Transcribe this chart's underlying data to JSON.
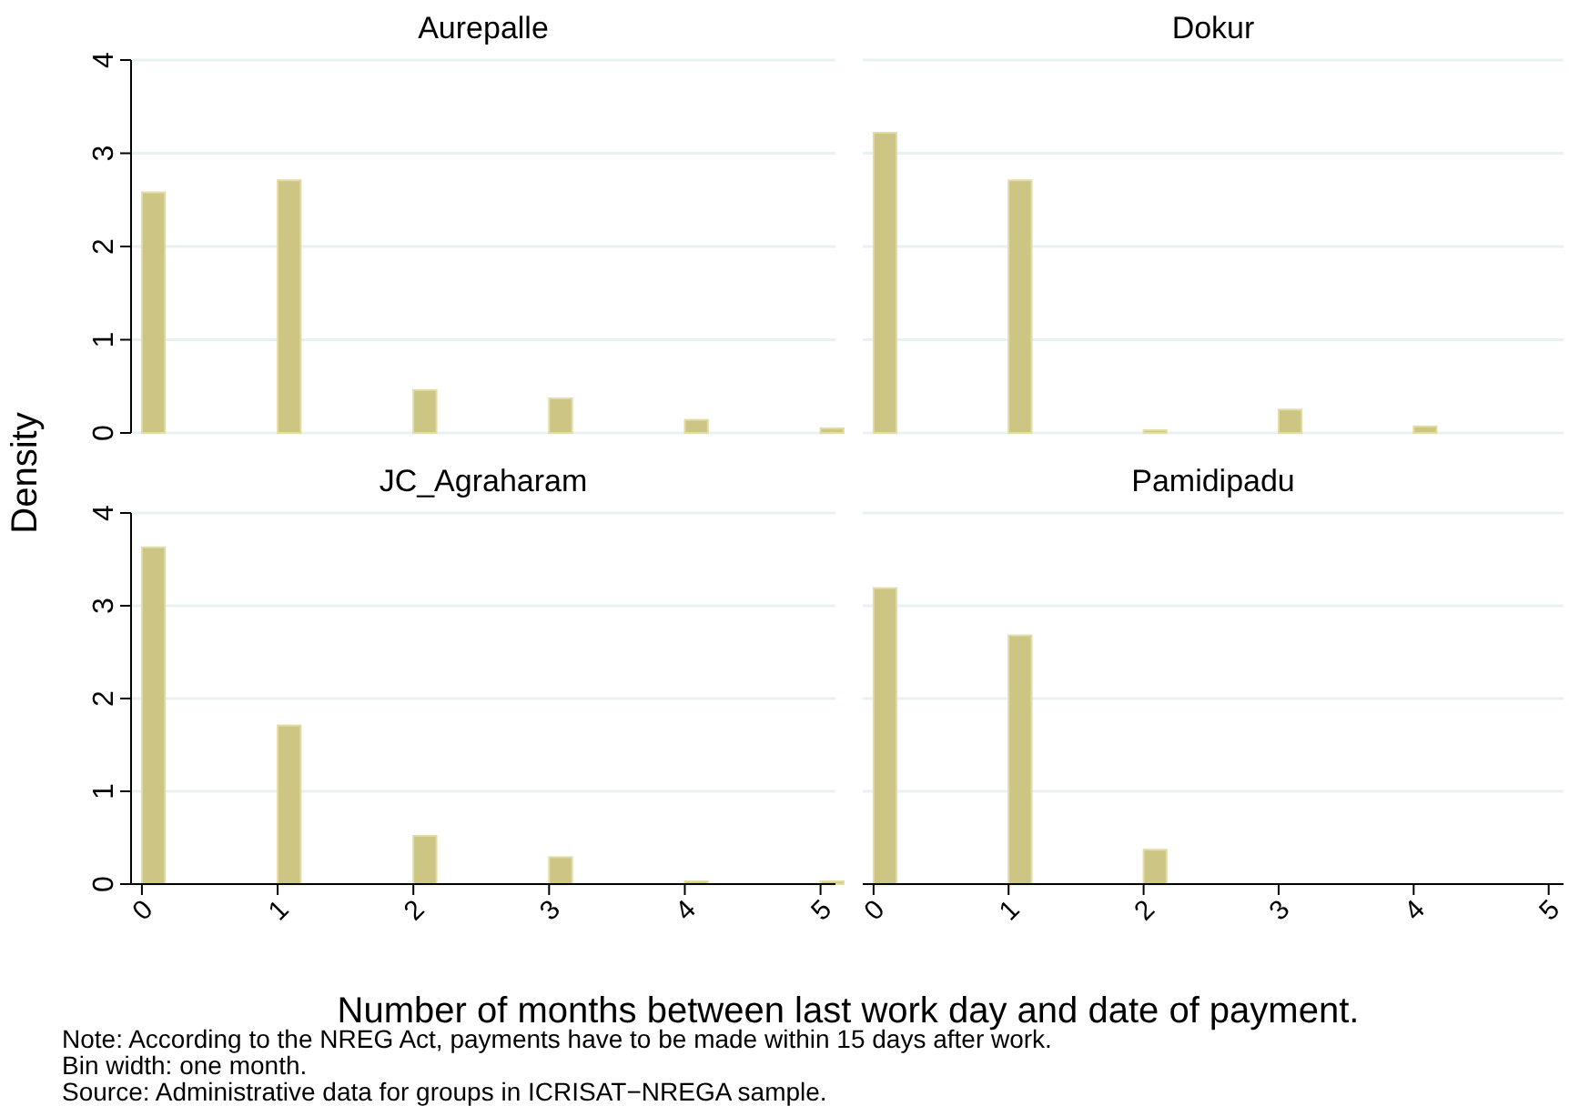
{
  "chart_data": [
    {
      "type": "bar",
      "title": "Aurepalle",
      "ylabel": "Density",
      "x": [
        0,
        1,
        2,
        3,
        4,
        5
      ],
      "values": [
        2.58,
        2.71,
        0.46,
        0.37,
        0.14,
        0.05
      ],
      "color": "#ccc584",
      "xlim": [
        -0.08,
        5.11
      ],
      "ylim": [
        0,
        4
      ],
      "yticks": [
        0,
        1,
        2,
        3,
        4
      ],
      "grid": "y",
      "tick_labels": "y"
    },
    {
      "type": "bar",
      "title": "Dokur",
      "x": [
        0,
        1,
        2,
        3,
        4
      ],
      "values": [
        3.22,
        2.71,
        0.03,
        0.25,
        0.07
      ],
      "color": "#ccc584",
      "xlim": [
        -0.08,
        5.11
      ],
      "ylim": [
        0,
        4
      ],
      "yticks": [
        0,
        1,
        2,
        3,
        4
      ],
      "grid": "y",
      "tick_labels": false
    },
    {
      "type": "bar",
      "title": "JC_Agraharam",
      "x": [
        0,
        1,
        2,
        3,
        4,
        5
      ],
      "values": [
        3.63,
        1.71,
        0.52,
        0.29,
        0.03,
        0.03
      ],
      "color": "#ccc584",
      "xlim": [
        -0.08,
        5.11
      ],
      "xticks": [
        0,
        1,
        2,
        3,
        4,
        5
      ],
      "ylim": [
        0,
        4
      ],
      "yticks": [
        0,
        1,
        2,
        3,
        4
      ],
      "grid": "y"
    },
    {
      "type": "bar",
      "title": "Pamidipadu",
      "xlabel": "Number of months between last work day and date of payment.",
      "x": [
        0,
        1,
        2
      ],
      "values": [
        3.19,
        2.68,
        0.37
      ],
      "color": "#ccc584",
      "xlim": [
        -0.08,
        5.11
      ],
      "xticks": [
        0,
        1,
        2,
        3,
        4,
        5
      ],
      "ylim": [
        0,
        4
      ],
      "yticks": [
        0,
        1,
        2,
        3,
        4
      ],
      "grid": "y",
      "tick_labels": "x",
      "annotations": [
        "Note: According to the NREG Act, payments have to be made within 15 days after work.",
        "Bin width: one month.",
        "Source: Administrative data for groups in ICRISAT−NREGA sample."
      ]
    }
  ]
}
